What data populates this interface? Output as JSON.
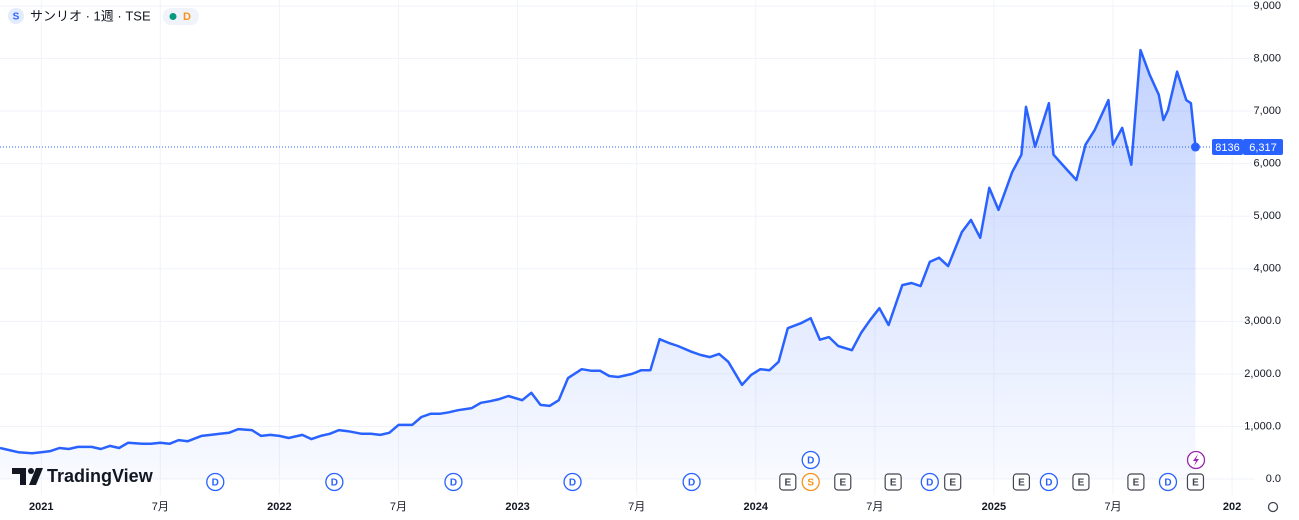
{
  "chart_data": {
    "type": "area",
    "title": "サンリオ · 1週 · TSE",
    "icon_letter": "S",
    "header_badge": "D",
    "watermark": "TradingView",
    "symbol_code": "8136",
    "last_price": {
      "value": 6317,
      "label": "6,317"
    },
    "color": "#2962ff",
    "x": [
      0,
      2,
      4,
      7,
      9,
      11,
      13,
      15,
      17,
      20,
      22,
      24,
      26,
      28,
      31,
      33,
      35,
      37,
      39,
      41,
      44,
      46,
      48,
      50,
      52,
      55,
      57,
      59,
      61,
      63,
      66,
      68,
      70,
      72,
      74,
      76,
      79,
      81,
      83,
      85,
      87,
      90,
      92,
      94,
      96,
      98,
      100,
      103,
      105,
      107,
      109,
      111,
      114,
      116,
      118,
      120,
      122,
      124,
      127,
      129,
      131,
      133,
      135,
      138,
      140,
      142,
      144,
      146,
      148,
      151,
      153,
      155,
      157,
      159,
      162,
      164,
      166,
      168,
      170,
      172,
      175,
      177,
      179,
      181,
      183,
      186,
      188,
      190,
      192,
      194,
      197,
      199,
      201,
      203,
      205,
      207,
      210,
      212,
      214,
      216,
      218,
      221,
      223,
      224,
      226,
      229,
      230,
      233,
      235,
      237,
      239,
      242,
      243,
      245,
      247,
      249,
      251,
      253,
      254,
      255,
      257,
      259,
      260,
      261
    ],
    "values": [
      590,
      550,
      510,
      490,
      510,
      530,
      590,
      570,
      610,
      610,
      570,
      630,
      590,
      690,
      670,
      670,
      690,
      670,
      740,
      720,
      820,
      840,
      860,
      880,
      950,
      930,
      820,
      840,
      820,
      780,
      840,
      760,
      820,
      860,
      930,
      910,
      860,
      860,
      840,
      880,
      1030,
      1030,
      1180,
      1240,
      1240,
      1270,
      1310,
      1350,
      1450,
      1480,
      1520,
      1580,
      1500,
      1640,
      1410,
      1390,
      1500,
      1920,
      2090,
      2060,
      2060,
      1960,
      1940,
      2000,
      2070,
      2070,
      2660,
      2590,
      2530,
      2420,
      2360,
      2320,
      2380,
      2230,
      1790,
      1980,
      2090,
      2070,
      2230,
      2870,
      2970,
      3060,
      2650,
      2700,
      2530,
      2450,
      2780,
      3030,
      3250,
      2930,
      3690,
      3730,
      3670,
      4130,
      4210,
      4050,
      4700,
      4930,
      4590,
      5540,
      5120,
      5840,
      6170,
      7080,
      6320,
      7150,
      6170,
      5880,
      5690,
      6360,
      6640,
      7210,
      6360,
      6680,
      5980,
      8160,
      7690,
      7310,
      6830,
      7020,
      7750,
      7210,
      7150,
      6320
    ],
    "xlim": [
      0,
      274
    ],
    "xticks": [
      {
        "value": 9,
        "label": "2021"
      },
      {
        "value": 35,
        "label": "7月"
      },
      {
        "value": 61,
        "label": "2022"
      },
      {
        "value": 87,
        "label": "7月"
      },
      {
        "value": 113,
        "label": "2023"
      },
      {
        "value": 139,
        "label": "7月"
      },
      {
        "value": 165,
        "label": "2024"
      },
      {
        "value": 191,
        "label": "7月"
      },
      {
        "value": 217,
        "label": "2025"
      },
      {
        "value": 243,
        "label": "7月"
      },
      {
        "value": 269,
        "label": "202"
      }
    ],
    "ylim": [
      0,
      9000
    ],
    "yticks": [
      {
        "value": 0,
        "label": "0.0"
      },
      {
        "value": 1000,
        "label": "1,000.0"
      },
      {
        "value": 2000,
        "label": "2,000.0"
      },
      {
        "value": 3000,
        "label": "3,000.0"
      },
      {
        "value": 4000,
        "label": "4,000"
      },
      {
        "value": 5000,
        "label": "5,000"
      },
      {
        "value": 6000,
        "label": "6,000"
      },
      {
        "value": 7000,
        "label": "7,000"
      },
      {
        "value": 8000,
        "label": "8,000"
      },
      {
        "value": 9000,
        "label": "9,000"
      }
    ],
    "grid": true,
    "events": [
      {
        "x": 47,
        "label": "D",
        "color": "#2962ff"
      },
      {
        "x": 73,
        "label": "D",
        "color": "#2962ff"
      },
      {
        "x": 99,
        "label": "D",
        "color": "#2962ff"
      },
      {
        "x": 125,
        "label": "D",
        "color": "#2962ff"
      },
      {
        "x": 151,
        "label": "D",
        "color": "#2962ff"
      },
      {
        "x": 172,
        "label": "E",
        "color": "#434651"
      },
      {
        "x": 177,
        "label": "S",
        "color": "#f7931a"
      },
      {
        "x": 177,
        "label": "D",
        "color": "#2962ff"
      },
      {
        "x": 184,
        "label": "E",
        "color": "#434651"
      },
      {
        "x": 195,
        "label": "E",
        "color": "#434651"
      },
      {
        "x": 203,
        "label": "D",
        "color": "#2962ff"
      },
      {
        "x": 208,
        "label": "E",
        "color": "#434651"
      },
      {
        "x": 223,
        "label": "E",
        "color": "#434651"
      },
      {
        "x": 229,
        "label": "D",
        "color": "#2962ff"
      },
      {
        "x": 236,
        "label": "E",
        "color": "#434651"
      },
      {
        "x": 248,
        "label": "E",
        "color": "#434651"
      },
      {
        "x": 255,
        "label": "D",
        "color": "#2962ff"
      },
      {
        "x": 261,
        "label": "E",
        "color": "#434651"
      }
    ]
  }
}
